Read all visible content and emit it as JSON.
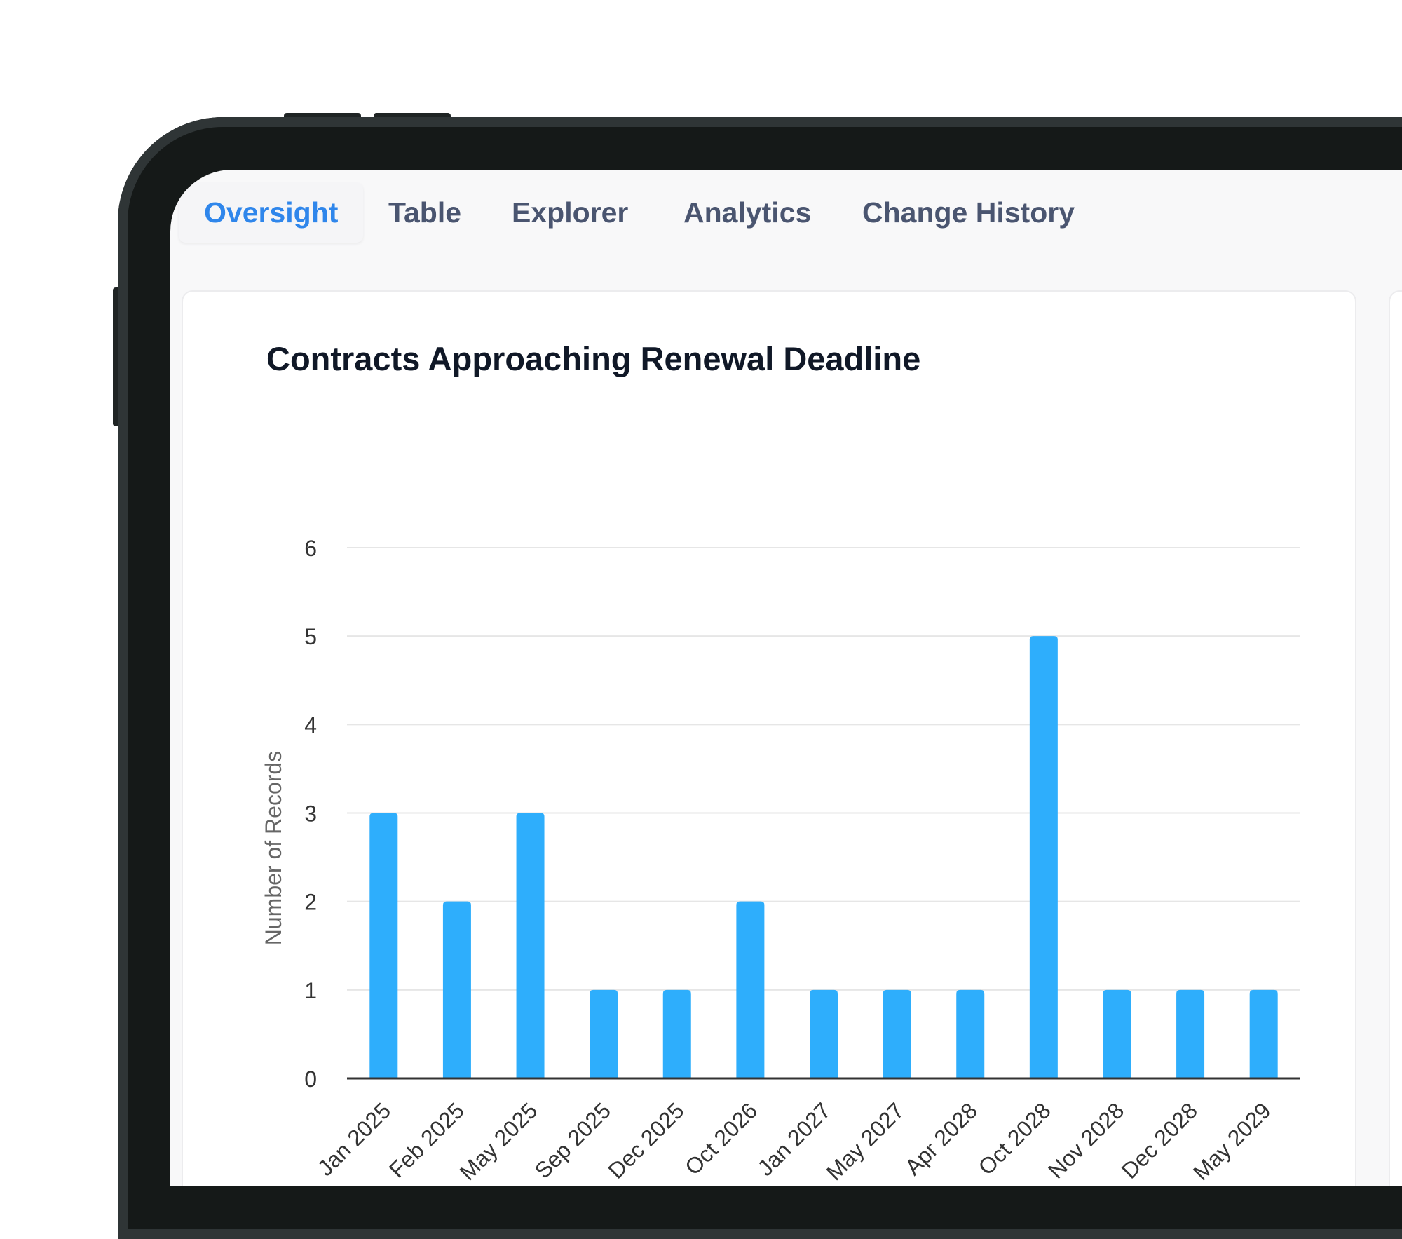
{
  "tabs": [
    {
      "label": "Oversight",
      "active": true
    },
    {
      "label": "Table",
      "active": false
    },
    {
      "label": "Explorer",
      "active": false
    },
    {
      "label": "Analytics",
      "active": false
    },
    {
      "label": "Change History",
      "active": false
    }
  ],
  "colors": {
    "accent": "#2f86eb",
    "bar": "#2eaefc",
    "tab_text": "#4a5570",
    "title": "#101827"
  },
  "card": {
    "title": "Contracts Approaching Renewal Deadline"
  },
  "chart_data": {
    "type": "bar",
    "categories": [
      "Jan 2025",
      "Feb 2025",
      "May 2025",
      "Sep 2025",
      "Dec 2025",
      "Oct 2026",
      "Jan 2027",
      "May 2027",
      "Apr 2028",
      "Oct 2028",
      "Nov 2028",
      "Dec 2028",
      "May 2029"
    ],
    "values": [
      3,
      2,
      3,
      1,
      1,
      2,
      1,
      1,
      1,
      5,
      1,
      1,
      1
    ],
    "title": "Contracts Approaching Renewal Deadline",
    "xlabel": "",
    "ylabel": "Number of Records",
    "ylim": [
      0,
      6
    ],
    "yticks": [
      0,
      1,
      2,
      3,
      4,
      5,
      6
    ],
    "grid": true
  }
}
